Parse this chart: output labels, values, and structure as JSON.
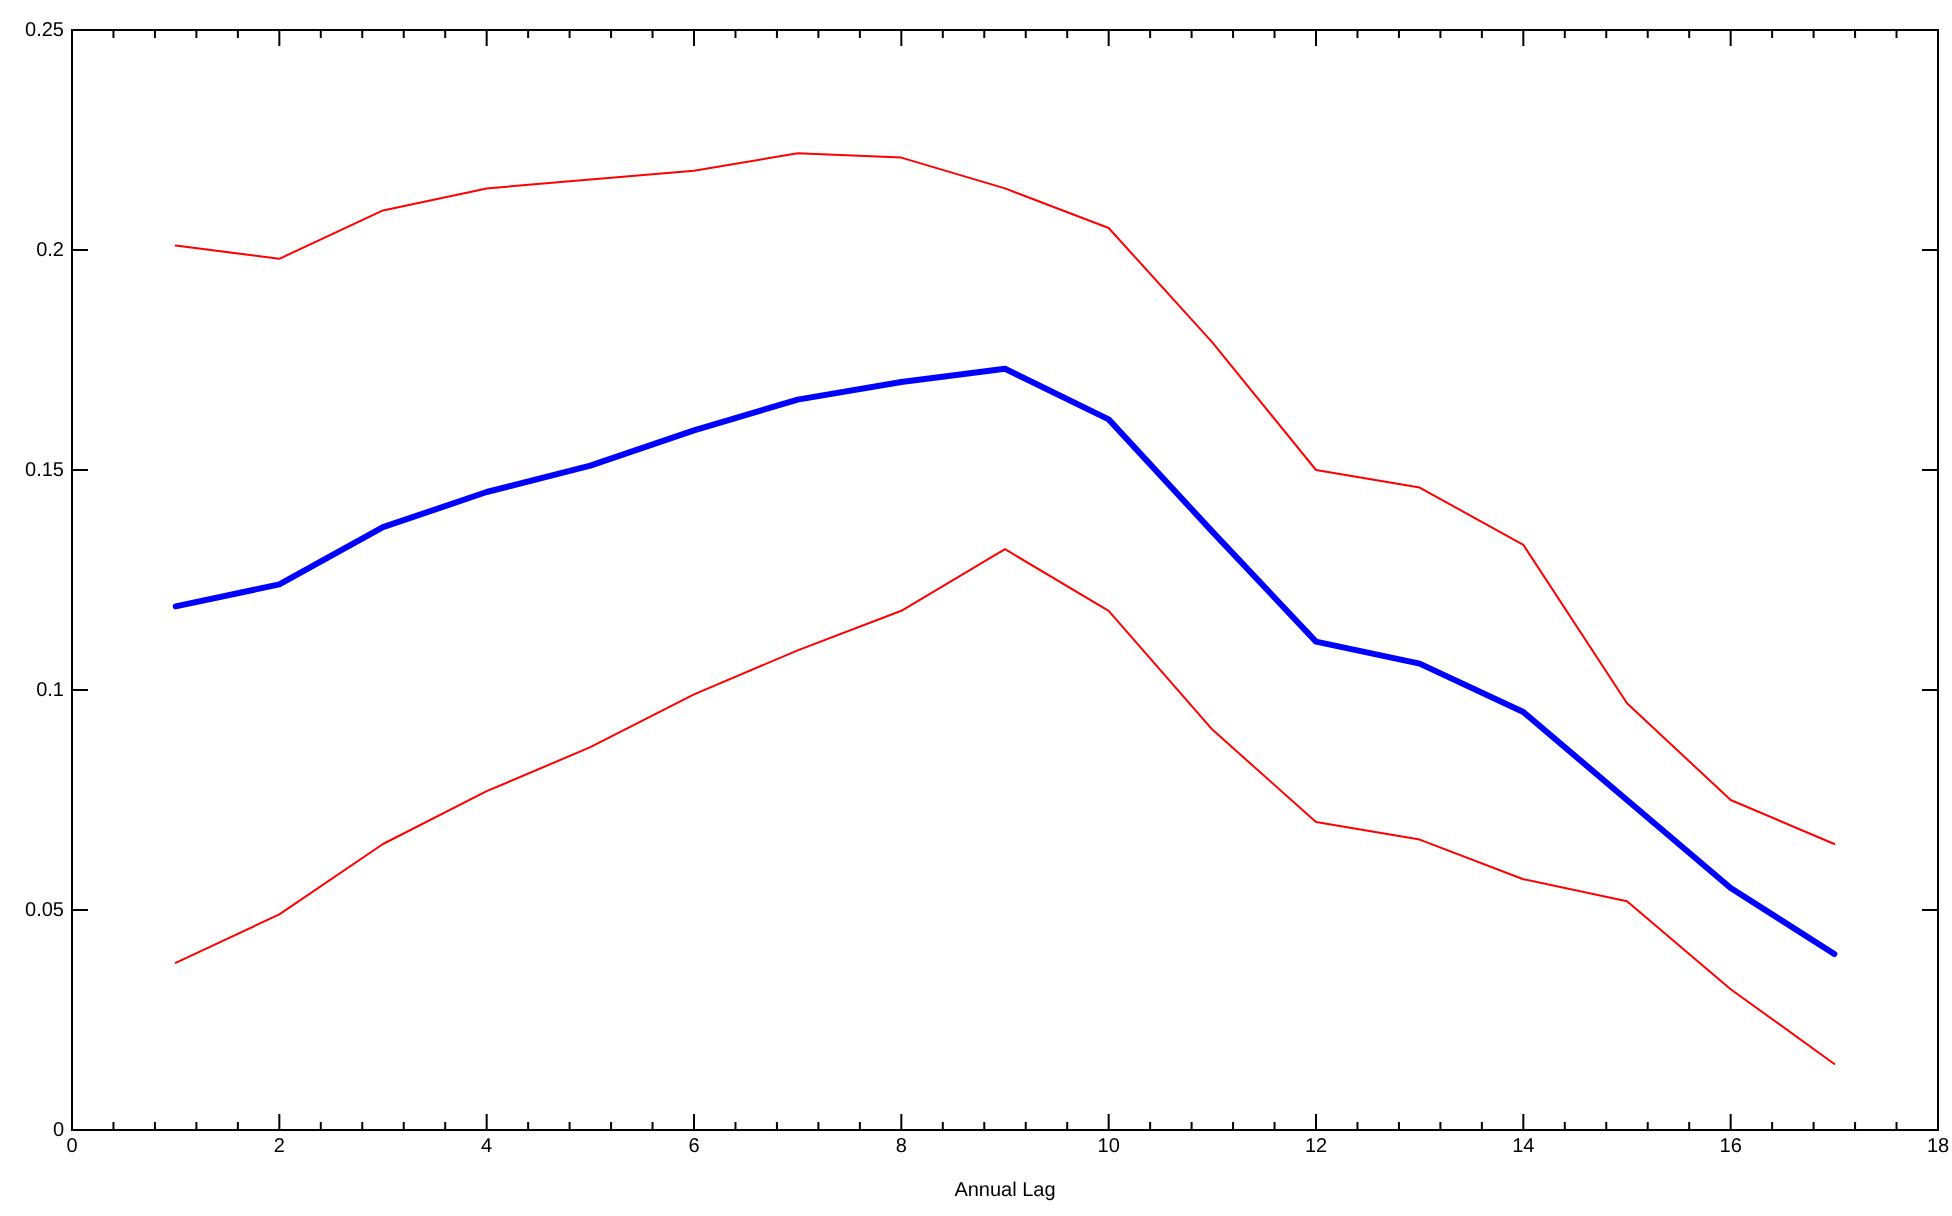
{
  "chart_data": {
    "type": "line",
    "xlabel": "Annual Lag",
    "x": [
      1,
      2,
      3,
      4,
      5,
      6,
      7,
      8,
      9,
      10,
      11,
      12,
      13,
      14,
      15,
      16,
      17
    ],
    "series": [
      {
        "color": "#ff0000",
        "values": [
          0.201,
          0.198,
          0.209,
          0.214,
          0.216,
          0.218,
          0.222,
          0.221,
          0.214,
          0.205,
          0.179,
          0.15,
          0.146,
          0.133,
          0.097,
          0.075,
          0.065
        ]
      },
      {
        "color": "#ff0000",
        "values": [
          0.038,
          0.049,
          0.065,
          0.077,
          0.087,
          0.099,
          0.109,
          0.118,
          0.132,
          0.118,
          0.091,
          0.07,
          0.066,
          0.057,
          0.052,
          0.032,
          0.015
        ]
      },
      {
        "color": "#0000ff",
        "values": [
          0.119,
          0.124,
          0.137,
          0.145,
          0.151,
          0.159,
          0.166,
          0.17,
          0.173,
          0.1615,
          0.136,
          0.111,
          0.106,
          0.095,
          0.075,
          0.055,
          0.04
        ]
      }
    ],
    "xlim": [
      0,
      18
    ],
    "xticks": [
      0,
      {
        "value": 0.4,
        "label": null
      },
      {
        "value": 0.8,
        "label": null
      },
      {
        "value": 1.2,
        "label": null
      },
      {
        "value": 1.6,
        "label": null
      },
      2,
      {
        "value": 2.4,
        "label": null
      },
      {
        "value": 2.8,
        "label": null
      },
      {
        "value": 3.2,
        "label": null
      },
      {
        "value": 3.6,
        "label": null
      },
      4,
      {
        "value": 4.4,
        "label": null
      },
      {
        "value": 4.8,
        "label": null
      },
      {
        "value": 5.2,
        "label": null
      },
      {
        "value": 5.6,
        "label": null
      },
      6,
      {
        "value": 6.4,
        "label": null
      },
      {
        "value": 6.8,
        "label": null
      },
      {
        "value": 7.2,
        "label": null
      },
      {
        "value": 7.6,
        "label": null
      },
      8,
      {
        "value": 8.4,
        "label": null
      },
      {
        "value": 8.8,
        "label": null
      },
      {
        "value": 9.2,
        "label": null
      },
      {
        "value": 9.6,
        "label": null
      },
      10,
      {
        "value": 10.4,
        "label": null
      },
      {
        "value": 10.8,
        "label": null
      },
      {
        "value": 11.2,
        "label": null
      },
      {
        "value": 11.6,
        "label": null
      },
      12,
      {
        "value": 12.4,
        "label": null
      },
      {
        "value": 12.8,
        "label": null
      },
      {
        "value": 13.2,
        "label": null
      },
      {
        "value": 13.6,
        "label": null
      },
      14,
      {
        "value": 14.4,
        "label": null
      },
      {
        "value": 14.8,
        "label": null
      },
      {
        "value": 15.2,
        "label": null
      },
      {
        "value": 15.6,
        "label": null
      },
      16,
      {
        "value": 16.4,
        "label": null
      },
      {
        "value": 16.8,
        "label": null
      },
      {
        "value": 17.2,
        "label": null
      },
      {
        "value": 17.6,
        "label": null
      },
      18
    ],
    "ylim": [
      0,
      0.25
    ],
    "yticks": [
      0,
      0.05,
      0.1,
      0.15,
      0.2,
      0.25
    ],
    "marker": "none",
    "line_style": "solid"
  }
}
